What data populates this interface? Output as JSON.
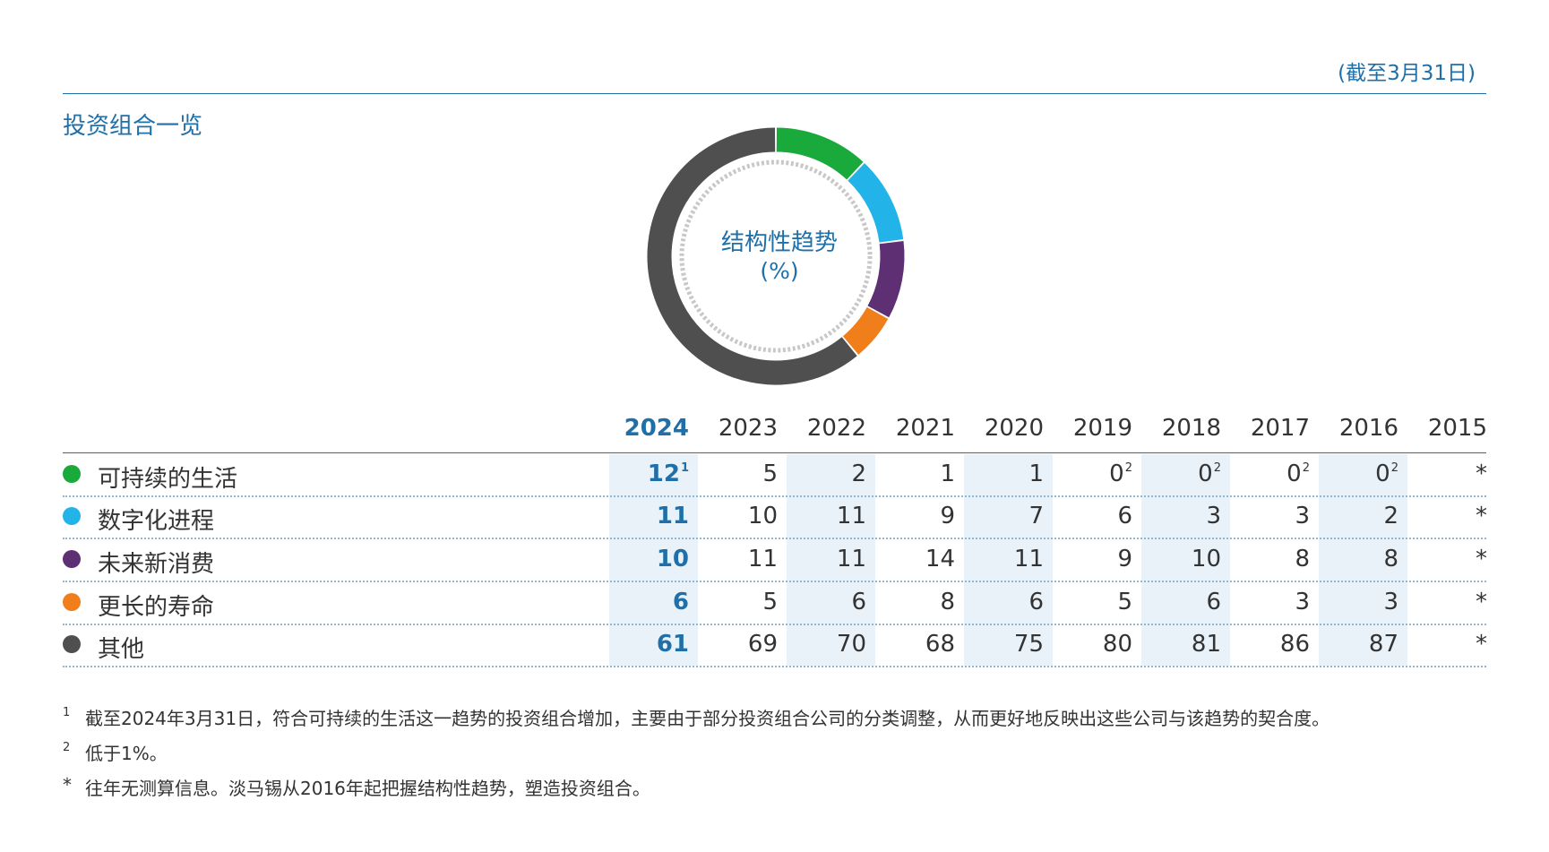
{
  "header": {
    "date_note": "(截至3月31日)",
    "section_title": "投资组合一览"
  },
  "chart_data": {
    "type": "pie",
    "style": "donut",
    "title": "结构性趋势",
    "unit": "(%)",
    "categories": [
      "可持续的生活",
      "数字化进程",
      "未来新消费",
      "更长的寿命",
      "其他"
    ],
    "values": [
      12,
      11,
      10,
      6,
      61
    ],
    "colors": [
      "#1aaa3c",
      "#22b4e8",
      "#5e2f72",
      "#f07e1b",
      "#4f4f4f"
    ],
    "year_shown": "2024"
  },
  "table": {
    "years": [
      "2024",
      "2023",
      "2022",
      "2021",
      "2020",
      "2019",
      "2018",
      "2017",
      "2016",
      "2015"
    ],
    "rows": [
      {
        "label": "可持续的生活",
        "color": "#1aaa3c",
        "values": [
          {
            "v": "12",
            "sup": "1"
          },
          {
            "v": "5"
          },
          {
            "v": "2"
          },
          {
            "v": "1"
          },
          {
            "v": "1"
          },
          {
            "v": "0",
            "sup": "2"
          },
          {
            "v": "0",
            "sup": "2"
          },
          {
            "v": "0",
            "sup": "2"
          },
          {
            "v": "0",
            "sup": "2"
          },
          {
            "v": "*"
          }
        ]
      },
      {
        "label": "数字化进程",
        "color": "#22b4e8",
        "values": [
          {
            "v": "11"
          },
          {
            "v": "10"
          },
          {
            "v": "11"
          },
          {
            "v": "9"
          },
          {
            "v": "7"
          },
          {
            "v": "6"
          },
          {
            "v": "3"
          },
          {
            "v": "3"
          },
          {
            "v": "2"
          },
          {
            "v": "*"
          }
        ]
      },
      {
        "label": "未来新消费",
        "color": "#5e2f72",
        "values": [
          {
            "v": "10"
          },
          {
            "v": "11"
          },
          {
            "v": "11"
          },
          {
            "v": "14"
          },
          {
            "v": "11"
          },
          {
            "v": "9"
          },
          {
            "v": "10"
          },
          {
            "v": "8"
          },
          {
            "v": "8"
          },
          {
            "v": "*"
          }
        ]
      },
      {
        "label": "更长的寿命",
        "color": "#f07e1b",
        "values": [
          {
            "v": "6"
          },
          {
            "v": "5"
          },
          {
            "v": "6"
          },
          {
            "v": "8"
          },
          {
            "v": "6"
          },
          {
            "v": "5"
          },
          {
            "v": "6"
          },
          {
            "v": "3"
          },
          {
            "v": "3"
          },
          {
            "v": "*"
          }
        ]
      },
      {
        "label": "其他",
        "color": "#4f4f4f",
        "values": [
          {
            "v": "61"
          },
          {
            "v": "69"
          },
          {
            "v": "70"
          },
          {
            "v": "68"
          },
          {
            "v": "75"
          },
          {
            "v": "80"
          },
          {
            "v": "81"
          },
          {
            "v": "86"
          },
          {
            "v": "87"
          },
          {
            "v": "*"
          }
        ]
      }
    ]
  },
  "footnotes": [
    {
      "mark": "1",
      "text": "截至2024年3月31日，符合可持续的生活这一趋势的投资组合增加，主要由于部分投资组合公司的分类调整，从而更好地反映出这些公司与该趋势的契合度。"
    },
    {
      "mark": "2",
      "text": "低于1%。"
    },
    {
      "mark": "*",
      "text": "往年无测算信息。淡马锡从2016年起把握结构性趋势，塑造投资组合。"
    }
  ]
}
